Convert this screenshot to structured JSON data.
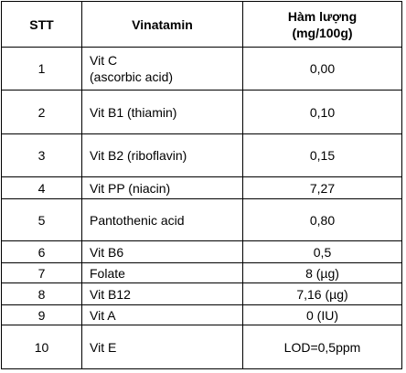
{
  "table": {
    "headers": {
      "stt": "STT",
      "name": "Vinatamin",
      "content_line1": "Hàm lượng",
      "content_line2": "(mg/100g)"
    },
    "rows": [
      {
        "stt": "1",
        "name": "Vit C",
        "name_sub": "(ascorbic acid)",
        "value": "0,00"
      },
      {
        "stt": "2",
        "name": "Vit B1 (thiamin)",
        "value": "0,10"
      },
      {
        "stt": "3",
        "name": "Vit B2 (riboflavin)",
        "value": "0,15"
      },
      {
        "stt": "4",
        "name": "Vit PP (niacin)",
        "value": "7,27"
      },
      {
        "stt": "5",
        "name": "Pantothenic acid",
        "value": "0,80"
      },
      {
        "stt": "6",
        "name": "Vit B6",
        "value": "0,5"
      },
      {
        "stt": "7",
        "name": "Folate",
        "value": "8 (µg)"
      },
      {
        "stt": "8",
        "name": "Vit B12",
        "value": "7,16 (µg)"
      },
      {
        "stt": "9",
        "name": "Vit A",
        "value": "0 (IU)"
      },
      {
        "stt": "10",
        "name": "Vit E",
        "value": "LOD=0,5ppm"
      }
    ]
  }
}
